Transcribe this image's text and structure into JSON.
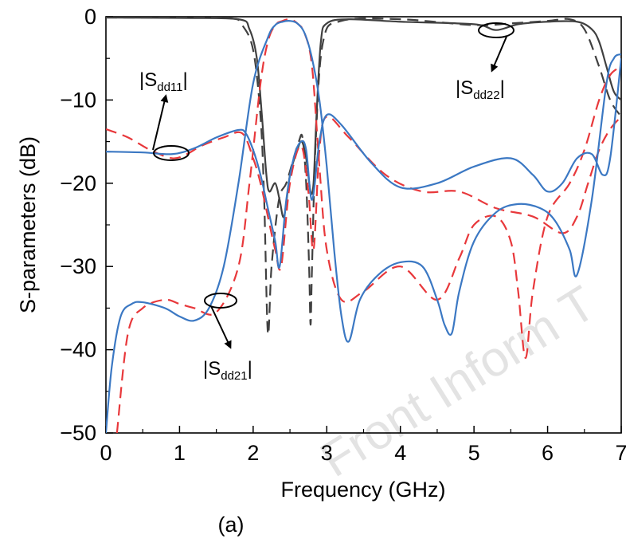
{
  "chart_data": {
    "type": "line",
    "title": "",
    "xlabel": "Frequency (GHz)",
    "ylabel": "S-parameters (dB)",
    "caption": "(a)",
    "watermark": "Front Inform T",
    "xlim": [
      0,
      7
    ],
    "ylim": [
      -50,
      0
    ],
    "xticks": [
      0,
      1,
      2,
      3,
      4,
      5,
      6,
      7
    ],
    "yticks": [
      0,
      -10,
      -20,
      -30,
      -40,
      -50
    ],
    "ytick_labels": [
      "0",
      "−10",
      "−20",
      "−30",
      "−40",
      "−50"
    ],
    "grid": false,
    "legend": "none",
    "annotations": [
      {
        "text": "|S",
        "sub": "dd11",
        "close": "|",
        "points_to_x": 0.9
      },
      {
        "text": "|S",
        "sub": "dd22",
        "close": "|",
        "points_to_x": 5.3
      },
      {
        "text": "|S",
        "sub": "dd21",
        "close": "|",
        "points_to_x": 1.5
      }
    ],
    "series": [
      {
        "key": "sdd22_sim",
        "color": "#404040",
        "dash": "solid",
        "x": [
          0,
          1.0,
          1.8,
          1.95,
          2.05,
          2.12,
          2.18,
          2.22,
          2.3,
          2.36,
          2.42,
          2.5,
          2.6,
          2.66,
          2.72,
          2.78,
          2.82,
          2.86,
          2.92,
          3.0,
          3.3,
          4.0,
          5.0,
          5.3,
          5.6,
          6.0,
          6.4,
          6.6,
          6.7,
          6.8,
          6.9,
          7.0
        ],
        "y": [
          -0.1,
          -0.15,
          -0.3,
          -1.5,
          -5,
          -12,
          -19,
          -21,
          -20,
          -22,
          -24,
          -19,
          -16,
          -15,
          -17,
          -21,
          -20,
          -12,
          -3,
          -0.8,
          -0.3,
          -0.6,
          -0.9,
          -1.6,
          -0.9,
          -0.6,
          -0.6,
          -1.5,
          -3,
          -6,
          -9,
          -10
        ]
      },
      {
        "key": "sdd22_meas",
        "color": "#404040",
        "dash": "dashed",
        "x": [
          0,
          1.0,
          1.7,
          1.85,
          2.0,
          2.1,
          2.15,
          2.2,
          2.25,
          2.35,
          2.45,
          2.55,
          2.62,
          2.67,
          2.72,
          2.76,
          2.78,
          2.8,
          2.85,
          2.95,
          3.2,
          4.0,
          5.0,
          5.5,
          6.0,
          6.3,
          6.5,
          6.7,
          6.85,
          7.0
        ],
        "y": [
          -0.1,
          -0.1,
          -0.2,
          -1,
          -4,
          -12,
          -22,
          -38,
          -30,
          -22,
          -20,
          -17,
          -15,
          -14.5,
          -20,
          -30,
          -37,
          -30,
          -15,
          -3,
          -0.5,
          -0.3,
          -1.0,
          -0.8,
          -0.5,
          -0.3,
          -1.5,
          -6,
          -10,
          -12
        ]
      },
      {
        "key": "sdd21_meas",
        "color": "#e8383b",
        "dash": "dashed",
        "x": [
          0.15,
          0.3,
          0.5,
          0.8,
          1.0,
          1.2,
          1.5,
          1.8,
          1.95,
          2.1,
          2.2,
          2.3,
          2.4,
          2.5,
          2.6,
          2.7,
          2.8,
          2.9,
          3.0,
          3.2,
          3.5,
          4.0,
          4.5,
          4.8,
          5.0,
          5.3,
          5.5,
          5.6,
          5.7,
          5.8,
          6.0,
          6.3,
          6.5,
          6.7,
          6.85,
          7.0
        ],
        "y": [
          -50,
          -38,
          -35,
          -34,
          -34.5,
          -35,
          -35.5,
          -30,
          -20,
          -8,
          -3,
          -1,
          -0.5,
          -0.3,
          -0.8,
          -2,
          -6,
          -18,
          -28,
          -34,
          -33,
          -30,
          -34,
          -29,
          -25,
          -24,
          -27,
          -33,
          -41,
          -33,
          -24,
          -20,
          -16,
          -10,
          -7,
          -6
        ]
      },
      {
        "key": "sdd11_meas",
        "color": "#e8383b",
        "dash": "dashed",
        "x": [
          0,
          0.3,
          0.6,
          0.9,
          1.1,
          1.3,
          1.6,
          1.85,
          2.0,
          2.1,
          2.2,
          2.3,
          2.38,
          2.5,
          2.65,
          2.75,
          2.82,
          2.9,
          3.0,
          3.3,
          3.8,
          4.3,
          4.8,
          5.3,
          5.8,
          6.2,
          6.4,
          6.55,
          6.7,
          6.85,
          7.0
        ],
        "y": [
          -13.5,
          -14.5,
          -16,
          -17,
          -16.5,
          -15.5,
          -14.5,
          -14,
          -17,
          -20,
          -24,
          -28,
          -30,
          -20,
          -15.5,
          -21,
          -28,
          -16,
          -12,
          -14.5,
          -19,
          -21,
          -21,
          -23,
          -24,
          -26,
          -24,
          -20,
          -16,
          -13.5,
          -12
        ]
      },
      {
        "key": "sdd11_sim",
        "color": "#3b78c3",
        "dash": "solid",
        "x": [
          0,
          0.5,
          0.9,
          1.2,
          1.5,
          1.8,
          1.9,
          2.0,
          2.1,
          2.2,
          2.3,
          2.36,
          2.45,
          2.55,
          2.65,
          2.72,
          2.8,
          2.9,
          3.0,
          3.2,
          3.6,
          4.0,
          4.5,
          5.0,
          5.5,
          5.8,
          6.0,
          6.2,
          6.4,
          6.6,
          6.75,
          6.85,
          7.0
        ],
        "y": [
          -16.2,
          -16.3,
          -16.5,
          -15.8,
          -14.5,
          -13.6,
          -14,
          -16,
          -19,
          -23,
          -27,
          -30,
          -22,
          -17,
          -15,
          -16,
          -22,
          -15,
          -11.8,
          -13,
          -17.5,
          -20.5,
          -20,
          -18,
          -17,
          -19,
          -21,
          -20,
          -17,
          -16.5,
          -19,
          -17,
          -5
        ]
      },
      {
        "key": "sdd21_sim",
        "color": "#3b78c3",
        "dash": "solid",
        "x": [
          0,
          0.08,
          0.2,
          0.35,
          0.5,
          0.8,
          1.0,
          1.2,
          1.4,
          1.6,
          1.8,
          2.0,
          2.2,
          2.3,
          2.4,
          2.5,
          2.6,
          2.7,
          2.8,
          2.9,
          3.0,
          3.1,
          3.2,
          3.3,
          3.45,
          3.7,
          4.0,
          4.3,
          4.5,
          4.6,
          4.7,
          4.8,
          5.0,
          5.3,
          5.6,
          5.9,
          6.1,
          6.3,
          6.4,
          6.6,
          6.8,
          6.9,
          7.0
        ],
        "y": [
          -50,
          -42,
          -36,
          -34.5,
          -34.3,
          -35,
          -36,
          -36.5,
          -35,
          -30,
          -20,
          -8,
          -2.5,
          -1,
          -0.6,
          -0.5,
          -0.8,
          -2,
          -5,
          -10,
          -18,
          -28,
          -36,
          -39,
          -34,
          -31,
          -29.5,
          -30,
          -34,
          -37,
          -38,
          -33,
          -27,
          -23.5,
          -22.5,
          -23,
          -24.5,
          -28,
          -31,
          -22,
          -8,
          -5,
          -4.5
        ]
      }
    ]
  }
}
